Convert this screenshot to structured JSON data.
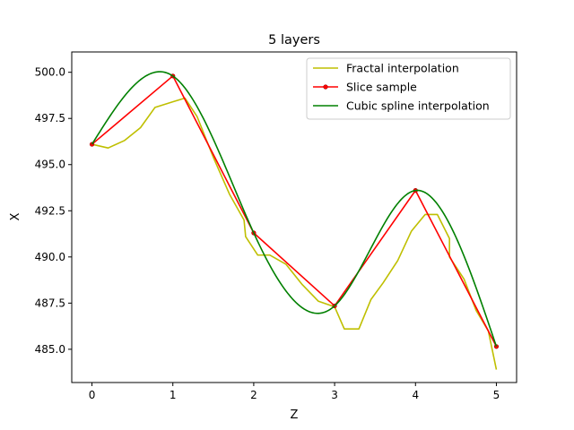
{
  "chart_data": {
    "type": "line",
    "title": "5 layers",
    "xlabel": "Z",
    "ylabel": "X",
    "xlim": [
      -0.25,
      5.25
    ],
    "ylim": [
      483.2,
      501.1
    ],
    "x_ticks": [
      0,
      1,
      2,
      3,
      4,
      5
    ],
    "x_tick_labels": [
      "0",
      "1",
      "2",
      "3",
      "4",
      "5"
    ],
    "y_ticks": [
      485.0,
      487.5,
      490.0,
      492.5,
      495.0,
      497.5,
      500.0
    ],
    "y_tick_labels": [
      "485.0",
      "487.5",
      "490.0",
      "492.5",
      "495.0",
      "497.5",
      "500.0"
    ],
    "grid": false,
    "legend_position": "top-right",
    "series": [
      {
        "name": "Fractal interpolation",
        "color": "#bfbf00",
        "marker": "none",
        "x": [
          0,
          0.2,
          0.4,
          0.6,
          0.78,
          1.0,
          1.15,
          1.3,
          1.5,
          1.7,
          1.88,
          1.9,
          2.05,
          2.2,
          2.4,
          2.6,
          2.8,
          3.0,
          3.12,
          3.3,
          3.45,
          3.6,
          3.78,
          3.95,
          4.12,
          4.27,
          4.42,
          4.42,
          4.6,
          4.75,
          4.9,
          5.0
        ],
        "y": [
          496.1,
          495.9,
          496.3,
          497.0,
          498.1,
          498.4,
          498.6,
          497.6,
          495.4,
          493.4,
          492.0,
          491.1,
          490.1,
          490.1,
          489.6,
          488.5,
          487.6,
          487.3,
          486.1,
          486.1,
          487.7,
          488.6,
          489.8,
          491.4,
          492.3,
          492.3,
          491.0,
          490.0,
          488.8,
          487.1,
          486.0,
          483.9
        ]
      },
      {
        "name": "Slice sample",
        "color": "#ff0000",
        "marker": "dot",
        "x": [
          0,
          1,
          2,
          3,
          4,
          5
        ],
        "y": [
          496.1,
          499.8,
          491.3,
          487.35,
          493.6,
          485.15
        ]
      },
      {
        "name": "Cubic spline interpolation",
        "color": "#008000",
        "marker": "none",
        "knots_x": [
          0,
          1,
          2,
          3,
          4,
          5
        ],
        "knots_y": [
          496.1,
          499.8,
          491.3,
          487.35,
          493.6,
          485.15
        ]
      }
    ]
  }
}
